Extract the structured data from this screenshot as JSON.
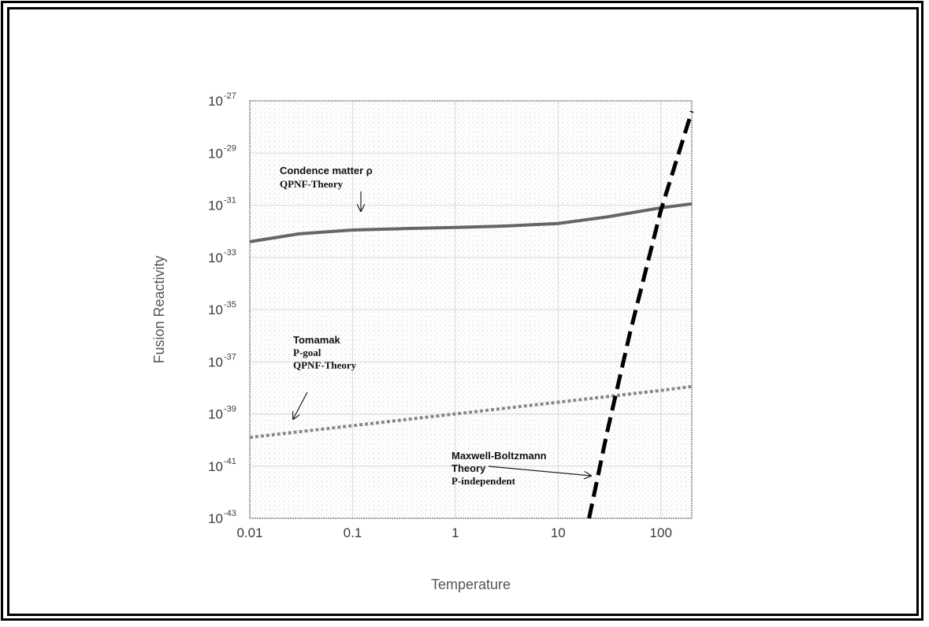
{
  "chart_data": {
    "type": "line",
    "title": "",
    "xlabel": "Temperature",
    "ylabel": "Fusion Reactivity",
    "x_scale": "log",
    "y_scale": "log",
    "xlim": [
      0.01,
      200
    ],
    "ylim_exponent": [
      -43,
      -27
    ],
    "x_ticks": [
      "0.01",
      "0.1",
      "1",
      "10",
      "100"
    ],
    "y_tick_exponents": [
      "-27",
      "-29",
      "-31",
      "-33",
      "-35",
      "-37",
      "-39",
      "-41",
      "-43"
    ],
    "grid": true,
    "colors": {
      "solid": "#666666",
      "dotted": "#888888",
      "dashed": "#000000"
    },
    "series": [
      {
        "style": "solid",
        "x": [
          0.01,
          0.03,
          0.1,
          0.3,
          1,
          3,
          10,
          30,
          100,
          200
        ],
        "log10_y": [
          -32.4,
          -32.1,
          -31.95,
          -31.9,
          -31.85,
          -31.8,
          -31.7,
          -31.45,
          -31.1,
          -30.95
        ]
      },
      {
        "style": "dotted",
        "x": [
          0.01,
          0.1,
          1,
          10,
          100,
          200
        ],
        "log10_y": [
          -39.9,
          -39.45,
          -39.0,
          -38.55,
          -38.1,
          -37.95
        ]
      },
      {
        "style": "dashed",
        "x": [
          20,
          30,
          50,
          100,
          200
        ],
        "log10_y": [
          -43,
          -39.7,
          -35.9,
          -31.2,
          -27.4
        ]
      }
    ],
    "annotations": [
      {
        "lines": [
          {
            "text": "Condence matter ρ",
            "font": "sans"
          },
          {
            "text": "QPNF-Theory",
            "font": "serif"
          }
        ]
      },
      {
        "lines": [
          {
            "text": "Tomamak",
            "font": "sans"
          },
          {
            "text": "P-goal",
            "font": "serif"
          },
          {
            "text": "QPNF-Theory",
            "font": "serif"
          }
        ]
      },
      {
        "lines": [
          {
            "text": "Maxwell-Boltzmann",
            "font": "sans"
          },
          {
            "text": "Theory",
            "font": "sans"
          },
          {
            "text": "P-independent",
            "font": "serif"
          }
        ]
      }
    ]
  }
}
